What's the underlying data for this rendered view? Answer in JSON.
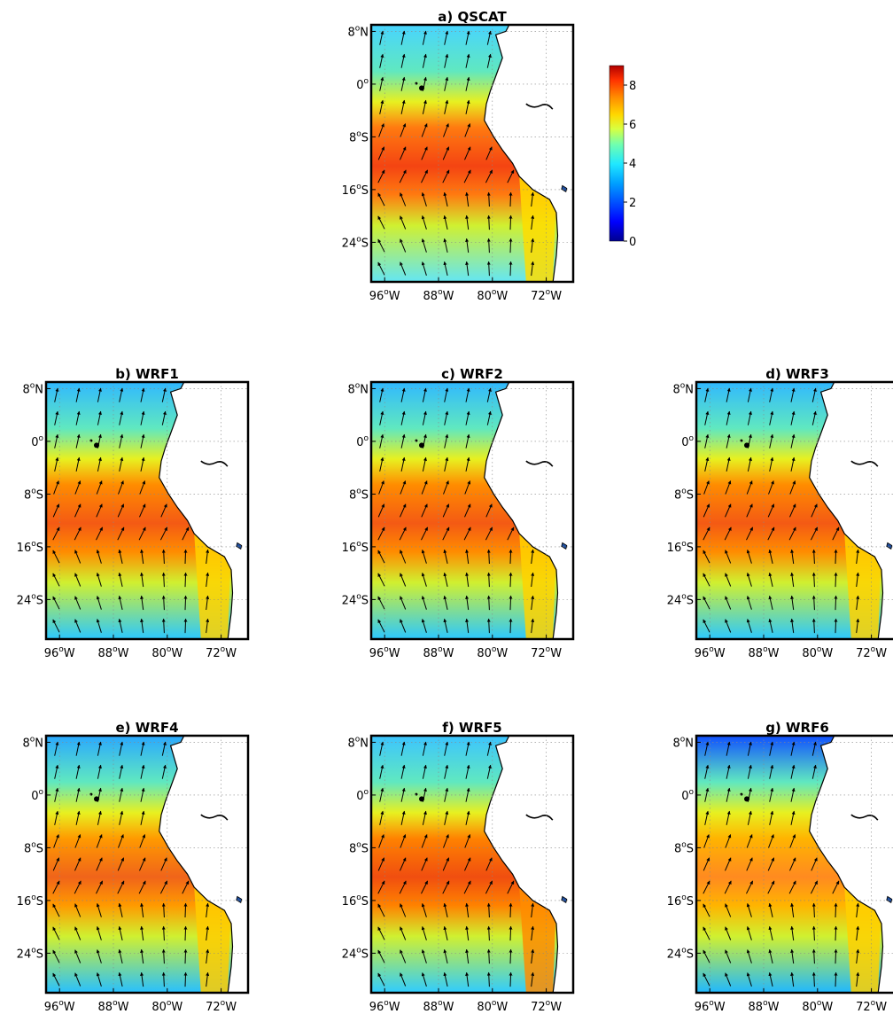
{
  "figure": {
    "panels": [
      {
        "id": "a",
        "title": "a) QSCAT",
        "regime": "obs"
      },
      {
        "id": "b",
        "title": "b) WRF1",
        "regime": "model"
      },
      {
        "id": "c",
        "title": "c) WRF2",
        "regime": "model"
      },
      {
        "id": "d",
        "title": "d) WRF3",
        "regime": "model"
      },
      {
        "id": "e",
        "title": "e) WRF4",
        "regime": "model_weak"
      },
      {
        "id": "f",
        "title": "f) WRF5",
        "regime": "model_strong"
      },
      {
        "id": "g",
        "title": "g) WRF6",
        "regime": "model_weakest"
      }
    ],
    "lon_ticks": [
      {
        "value": -96,
        "label": "96",
        "hemi": "W"
      },
      {
        "value": -88,
        "label": "88",
        "hemi": "W"
      },
      {
        "value": -80,
        "label": "80",
        "hemi": "W"
      },
      {
        "value": -72,
        "label": "72",
        "hemi": "W"
      }
    ],
    "lat_ticks": [
      {
        "value": 8,
        "label": "8",
        "hemi": "N"
      },
      {
        "value": 0,
        "label": "0",
        "hemi": ""
      },
      {
        "value": -8,
        "label": "8",
        "hemi": "S"
      },
      {
        "value": -16,
        "label": "16",
        "hemi": "S"
      },
      {
        "value": -24,
        "label": "24",
        "hemi": "S"
      }
    ],
    "lon_range": [
      -98,
      -68
    ],
    "lat_range": [
      9,
      -30
    ],
    "colorbar": {
      "ticks": [
        "0",
        "2",
        "4",
        "6",
        "8"
      ],
      "range": [
        0,
        9
      ],
      "colormap": [
        "#00008f",
        "#0000ff",
        "#00a0ff",
        "#20e8ff",
        "#70ffb0",
        "#d8ff40",
        "#ffd800",
        "#ff8c00",
        "#ff3000",
        "#b00000"
      ]
    },
    "colors": {
      "land": "#ffffff",
      "coast": "#000000",
      "grid": "#888888",
      "arrow": "#000000"
    }
  }
}
